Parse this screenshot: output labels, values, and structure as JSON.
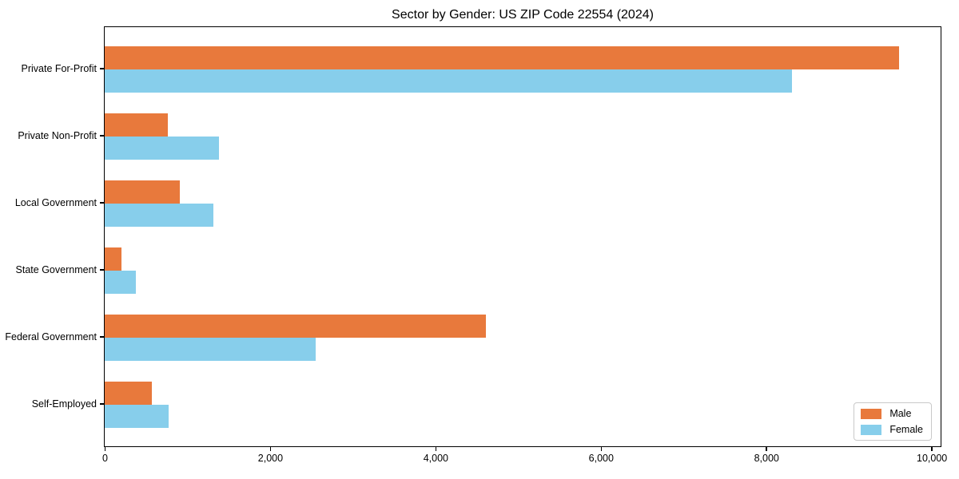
{
  "chart_data": {
    "type": "bar",
    "orientation": "horizontal",
    "title": "Sector by Gender: US ZIP Code 22554 (2024)",
    "categories": [
      "Private For-Profit",
      "Private Non-Profit",
      "Local Government",
      "State Government",
      "Federal Government",
      "Self-Employed"
    ],
    "series": [
      {
        "name": "Male",
        "color": "#E8793C",
        "values": [
          9610,
          760,
          910,
          200,
          4610,
          570
        ]
      },
      {
        "name": "Female",
        "color": "#87CEEB",
        "values": [
          8310,
          1380,
          1310,
          380,
          2550,
          770
        ]
      }
    ],
    "xlabel": "",
    "ylabel": "",
    "xlim": [
      0,
      10100
    ],
    "x_ticks": [
      0,
      2000,
      4000,
      6000,
      8000,
      10000
    ],
    "x_tick_labels": [
      "0",
      "2,000",
      "4,000",
      "6,000",
      "8,000",
      "10,000"
    ],
    "grid": false,
    "legend_position": "lower right",
    "colors": {
      "male": "#E8793C",
      "female": "#87CEEB",
      "axis": "#000000",
      "background": "#FFFFFF"
    }
  }
}
